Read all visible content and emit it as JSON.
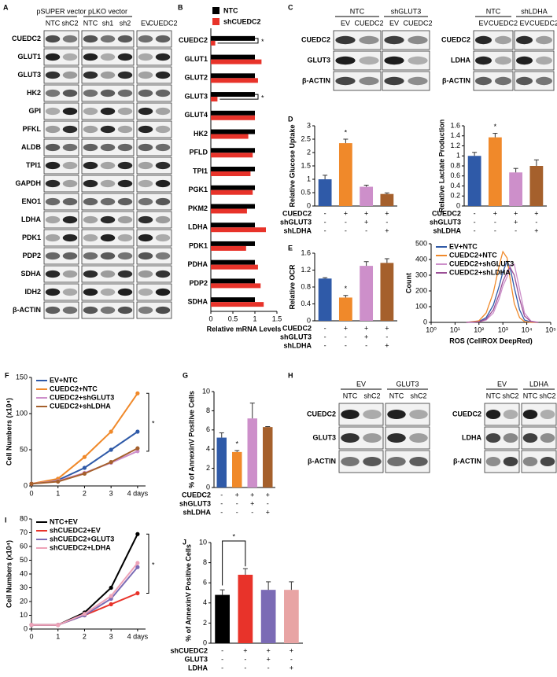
{
  "panel_labels": [
    "A",
    "B",
    "C",
    "D",
    "E",
    "F",
    "G",
    "H",
    "I",
    "J"
  ],
  "blots": [
    {
      "groups": [
        {
          "name": "pSUPER vector",
          "lanes": [
            "NTC",
            "shC2"
          ]
        },
        {
          "name": "pLKO vector",
          "lanes": [
            "NTC",
            "sh1",
            "sh2"
          ]
        },
        {
          "lanes": [
            "EV",
            "CUEDC2"
          ]
        }
      ],
      "rows": [
        "CUEDC2",
        "GLUT1",
        "GLUT3",
        "HK2",
        "GPI",
        "PFKL",
        "ALDB",
        "TPI1",
        "GAPDH",
        "ENO1",
        "LDHA",
        "PDK1",
        "PDP2",
        "SDHA",
        "IDH2",
        "β-ACTIN"
      ]
    },
    {
      "groups": [
        {
          "name": "NTC",
          "lanes": [
            "EV",
            "CUEDC2"
          ]
        },
        {
          "name": "shGLUT3",
          "lanes": [
            "EV",
            "CUEDC2"
          ]
        }
      ],
      "rows": [
        "CUEDC2",
        "GLUT3",
        "β-ACTIN"
      ]
    },
    {
      "groups": [
        {
          "name": "NTC",
          "lanes": [
            "EV",
            "CUEDC2"
          ]
        },
        {
          "name": "shLDHA",
          "lanes": [
            "EV",
            "CUEDC2"
          ]
        }
      ],
      "rows": [
        "CUEDC2",
        "LDHA",
        "β-ACTIN"
      ]
    },
    {
      "groups": [
        {
          "name": "EV",
          "lanes": [
            "NTC",
            "shC2"
          ]
        },
        {
          "name": "GLUT3",
          "lanes": [
            "NTC",
            "shC2"
          ]
        }
      ],
      "rows": [
        "CUEDC2",
        "GLUT3",
        "β-ACTIN"
      ]
    },
    {
      "groups": [
        {
          "name": "EV",
          "lanes": [
            "NTC",
            "shC2"
          ]
        },
        {
          "name": "LDHA",
          "lanes": [
            "NTC",
            "shC2"
          ]
        }
      ],
      "rows": [
        "CUEDC2",
        "LDHA",
        "β-ACTIN"
      ]
    }
  ],
  "chart_data": [
    {
      "type": "hbar",
      "categories": [
        "CUEDC2",
        "GLUT1",
        "GLUT2",
        "GLUT3",
        "GLUT4",
        "HK2",
        "PFLD",
        "TPI1",
        "PGK1",
        "PKM2",
        "LDHA",
        "PDK1",
        "PDHA",
        "PDP2",
        "SDHA"
      ],
      "series": [
        {
          "name": "NTC",
          "color": "#000000",
          "values": [
            1,
            1,
            1,
            1,
            1,
            1,
            1,
            1,
            1,
            1,
            1,
            1,
            1,
            1,
            1
          ]
        },
        {
          "name": "shCUEDC2",
          "color": "#e8332a",
          "values": [
            0.1,
            1.15,
            1.07,
            0.15,
            1.0,
            0.85,
            0.95,
            0.9,
            0.95,
            0.82,
            1.25,
            0.8,
            1.07,
            1.13,
            1.2
          ]
        }
      ],
      "annotations": [
        "*",
        null,
        null,
        "*",
        null,
        null,
        null,
        null,
        null,
        null,
        null,
        null,
        null,
        null,
        null
      ],
      "xlim": [
        0,
        1.5
      ],
      "xticks": [
        0,
        0.5,
        1,
        1.5
      ],
      "xlabel": "Relative mRNA Levels"
    },
    {
      "type": "bar",
      "values": [
        1.0,
        2.35,
        0.72,
        0.45
      ],
      "errors": [
        0.15,
        0.15,
        0.06,
        0.04
      ],
      "colors": [
        "#2f5aa8",
        "#f0892a",
        "#cd8fca",
        "#a5602c"
      ],
      "annotations": [
        null,
        "*",
        null,
        null
      ],
      "ylim": [
        0,
        3
      ],
      "yticks": [
        0,
        0.5,
        1,
        1.5,
        2,
        2.5,
        3
      ],
      "ylabel": "Relative Glucose Uptake",
      "conditions": [
        {
          "name": "CUEDC2",
          "signs": [
            "-",
            "+",
            "+",
            "+"
          ]
        },
        {
          "name": "shGLUT3",
          "signs": [
            "-",
            "-",
            "+",
            "-"
          ]
        },
        {
          "name": "shLDHA",
          "signs": [
            "-",
            "-",
            "-",
            "+"
          ]
        }
      ]
    },
    {
      "type": "bar",
      "values": [
        1.0,
        1.37,
        0.67,
        0.8
      ],
      "errors": [
        0.07,
        0.08,
        0.08,
        0.12
      ],
      "colors": [
        "#2f5aa8",
        "#f0892a",
        "#cd8fca",
        "#a5602c"
      ],
      "annotations": [
        null,
        "*",
        null,
        null
      ],
      "ylim": [
        0,
        1.6
      ],
      "yticks": [
        0,
        0.2,
        0.4,
        0.6,
        0.8,
        1,
        1.2,
        1.4,
        1.6
      ],
      "ylabel": "Relative Lactate Production",
      "conditions": [
        {
          "name": "CUEDC2",
          "signs": [
            "-",
            "+",
            "+",
            "+"
          ]
        },
        {
          "name": "shGLUT3",
          "signs": [
            "-",
            "-",
            "+",
            "-"
          ]
        },
        {
          "name": "shLDHA",
          "signs": [
            "-",
            "-",
            "-",
            "+"
          ]
        }
      ]
    },
    {
      "type": "bar",
      "values": [
        1.0,
        0.55,
        1.3,
        1.37
      ],
      "errors": [
        0.02,
        0.05,
        0.1,
        0.1
      ],
      "colors": [
        "#2f5aa8",
        "#f0892a",
        "#cd8fca",
        "#a5602c"
      ],
      "annotations": [
        null,
        "*",
        null,
        null
      ],
      "ylim": [
        0,
        1.6
      ],
      "yticks": [
        0,
        0.4,
        0.8,
        1.2,
        1.6
      ],
      "ylabel": "Relative OCR",
      "conditions": [
        {
          "name": "CUEDC2",
          "signs": [
            "-",
            "+",
            "+",
            "+"
          ]
        },
        {
          "name": "shGLUT3",
          "signs": [
            "-",
            "-",
            "+",
            "-"
          ]
        },
        {
          "name": "shLDHA",
          "signs": [
            "-",
            "-",
            "-",
            "+"
          ]
        }
      ]
    },
    {
      "type": "line",
      "log_x": true,
      "x": [
        30,
        100,
        200,
        400,
        700,
        1000,
        1500,
        2000,
        3000,
        5000,
        8000,
        15000,
        30000
      ],
      "series": [
        {
          "name": "EV+NTC",
          "color": "#2f5aa8",
          "values": [
            0,
            5,
            30,
            110,
            230,
            320,
            390,
            350,
            220,
            80,
            15,
            2,
            0
          ]
        },
        {
          "name": "CUEDC2+NTC",
          "color": "#f0892a",
          "values": [
            0,
            10,
            60,
            190,
            360,
            450,
            410,
            280,
            120,
            30,
            5,
            0,
            0
          ]
        },
        {
          "name": "CUEDC2+shGLUT3",
          "color": "#cd8fca",
          "values": [
            0,
            3,
            15,
            60,
            150,
            230,
            290,
            360,
            370,
            210,
            60,
            8,
            0
          ]
        },
        {
          "name": "CUEDC2+shLDHA",
          "color": "#9b4f96",
          "values": [
            0,
            4,
            20,
            80,
            180,
            260,
            320,
            350,
            300,
            150,
            40,
            5,
            0
          ]
        }
      ],
      "xlim": [
        1,
        100000
      ],
      "xticks": [
        {
          "value": 1,
          "label": "10⁰"
        },
        {
          "value": 10,
          "label": "10¹"
        },
        {
          "value": 100,
          "label": "10²"
        },
        {
          "value": 1000,
          "label": "10³"
        },
        {
          "value": 10000,
          "label": "10⁴"
        },
        {
          "value": 100000,
          "label": "10⁵"
        }
      ],
      "ylim": [
        0,
        500
      ],
      "yticks": [
        0,
        100,
        200,
        300,
        400,
        500
      ],
      "ylabel": "Count",
      "xlabel": "ROS (CellROX DeepRed)",
      "legend": "upper left"
    },
    {
      "type": "line",
      "markers": true,
      "x": [
        0,
        1,
        2,
        3,
        4
      ],
      "series": [
        {
          "name": "EV+NTC",
          "color": "#2f5aa8",
          "values": [
            3,
            8,
            25,
            50,
            75
          ]
        },
        {
          "name": "CUEDC2+NTC",
          "color": "#f0892a",
          "values": [
            3,
            10,
            40,
            75,
            128
          ]
        },
        {
          "name": "CUEDC2+shGLUT3",
          "color": "#cd8fca",
          "values": [
            3,
            7,
            18,
            32,
            48
          ]
        },
        {
          "name": "CUEDC2+shLDHA",
          "color": "#a5602c",
          "values": [
            3,
            6,
            17,
            33,
            52
          ]
        }
      ],
      "xlim": [
        0,
        4.3
      ],
      "xticks": [
        0,
        1,
        2,
        3,
        {
          "value": 4,
          "label": "4 days"
        }
      ],
      "ylim": [
        0,
        150
      ],
      "yticks": [
        0,
        50,
        100,
        150
      ],
      "ylabel": "Cell Numbers (x10⁴)",
      "legend": "upper left",
      "annotation": "*"
    },
    {
      "type": "bar",
      "values": [
        5.2,
        3.7,
        7.2,
        6.3
      ],
      "errors": [
        0.5,
        0.15,
        1.6,
        0.05
      ],
      "colors": [
        "#2f5aa8",
        "#f0892a",
        "#cd8fca",
        "#a5602c"
      ],
      "annotations": [
        null,
        "*",
        null,
        null
      ],
      "ylim": [
        0,
        10
      ],
      "yticks": [
        0,
        2,
        4,
        6,
        8,
        10
      ],
      "ylabel": "% of AnnexinV Positive Cells",
      "conditions": [
        {
          "name": "CUEDC2",
          "signs": [
            "-",
            "+",
            "+",
            "+"
          ]
        },
        {
          "name": "shGLUT3",
          "signs": [
            "-",
            "-",
            "+",
            "-"
          ]
        },
        {
          "name": "shLDHA",
          "signs": [
            "-",
            "-",
            "-",
            "+"
          ]
        }
      ]
    },
    {
      "type": "line",
      "markers": true,
      "x": [
        0,
        1,
        2,
        3,
        4
      ],
      "series": [
        {
          "name": "NTC+EV",
          "color": "#000000",
          "values": [
            3,
            3,
            12,
            30,
            69
          ]
        },
        {
          "name": "shCUEDC2+EV",
          "color": "#e8332a",
          "values": [
            3,
            3,
            10,
            18,
            26
          ]
        },
        {
          "name": "shCUEDC2+GLUT3",
          "color": "#7b6bb5",
          "values": [
            3,
            3,
            10,
            22,
            45
          ]
        },
        {
          "name": "shCUEDC2+LDHA",
          "color": "#eea3b8",
          "values": [
            3,
            3,
            11,
            24,
            48
          ]
        }
      ],
      "xlim": [
        0,
        4.3
      ],
      "xticks": [
        0,
        1,
        2,
        3,
        {
          "value": 4,
          "label": "4 days"
        }
      ],
      "ylim": [
        0,
        80
      ],
      "yticks": [
        0,
        10,
        20,
        30,
        40,
        50,
        60,
        70,
        80
      ],
      "ylabel": "Cell Numbers (x10⁴)",
      "legend": "upper left",
      "annotation": "*"
    },
    {
      "type": "bar",
      "values": [
        4.8,
        6.8,
        5.3,
        5.3
      ],
      "errors": [
        0.5,
        0.6,
        0.8,
        0.8
      ],
      "colors": [
        "#000000",
        "#e8332a",
        "#7b6bb5",
        "#e8a4a4"
      ],
      "annotations": [
        null,
        "*",
        null,
        null
      ],
      "bracket_to_first": true,
      "ylim": [
        0,
        10
      ],
      "yticks": [
        0,
        2,
        4,
        6,
        8,
        10
      ],
      "ylabel": "% of AnnexinV Positive Cells",
      "conditions": [
        {
          "name": "shCUEDC2",
          "signs": [
            "-",
            "+",
            "+",
            "+"
          ]
        },
        {
          "name": "GLUT3",
          "signs": [
            "-",
            "-",
            "+",
            "-"
          ]
        },
        {
          "name": "LDHA",
          "signs": [
            "-",
            "-",
            "-",
            "+"
          ]
        }
      ]
    }
  ]
}
